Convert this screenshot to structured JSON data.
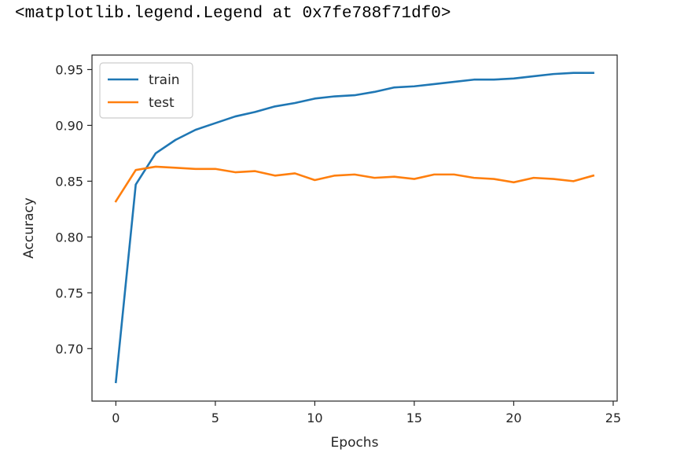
{
  "output_text": "<matplotlib.legend.Legend at 0x7fe788f71df0>",
  "chart_data": {
    "type": "line",
    "xlabel": "Epochs",
    "ylabel": "Accuracy",
    "x": [
      0,
      1,
      2,
      3,
      4,
      5,
      6,
      7,
      8,
      9,
      10,
      11,
      12,
      13,
      14,
      15,
      16,
      17,
      18,
      19,
      20,
      21,
      22,
      23,
      24
    ],
    "xlim": [
      -1.2,
      25.2
    ],
    "ylim": [
      0.653,
      0.963
    ],
    "xticks": [
      0,
      5,
      10,
      15,
      20,
      25
    ],
    "yticks": [
      0.7,
      0.75,
      0.8,
      0.85,
      0.9,
      0.95
    ],
    "xtick_labels": [
      "0",
      "5",
      "10",
      "15",
      "20",
      "25"
    ],
    "ytick_labels": [
      "0.70",
      "0.75",
      "0.80",
      "0.85",
      "0.90",
      "0.95"
    ],
    "grid": false,
    "legend_position": "top-left",
    "series": [
      {
        "name": "train",
        "color": "#1f77b4",
        "values": [
          0.67,
          0.847,
          0.875,
          0.887,
          0.896,
          0.902,
          0.908,
          0.912,
          0.917,
          0.92,
          0.924,
          0.926,
          0.927,
          0.93,
          0.934,
          0.935,
          0.937,
          0.939,
          0.941,
          0.941,
          0.942,
          0.944,
          0.946,
          0.947,
          0.947
        ]
      },
      {
        "name": "test",
        "color": "#ff7f0e",
        "values": [
          0.832,
          0.86,
          0.863,
          0.862,
          0.861,
          0.861,
          0.858,
          0.859,
          0.855,
          0.857,
          0.851,
          0.855,
          0.856,
          0.853,
          0.854,
          0.852,
          0.856,
          0.856,
          0.853,
          0.852,
          0.849,
          0.853,
          0.852,
          0.85,
          0.855
        ]
      }
    ]
  }
}
